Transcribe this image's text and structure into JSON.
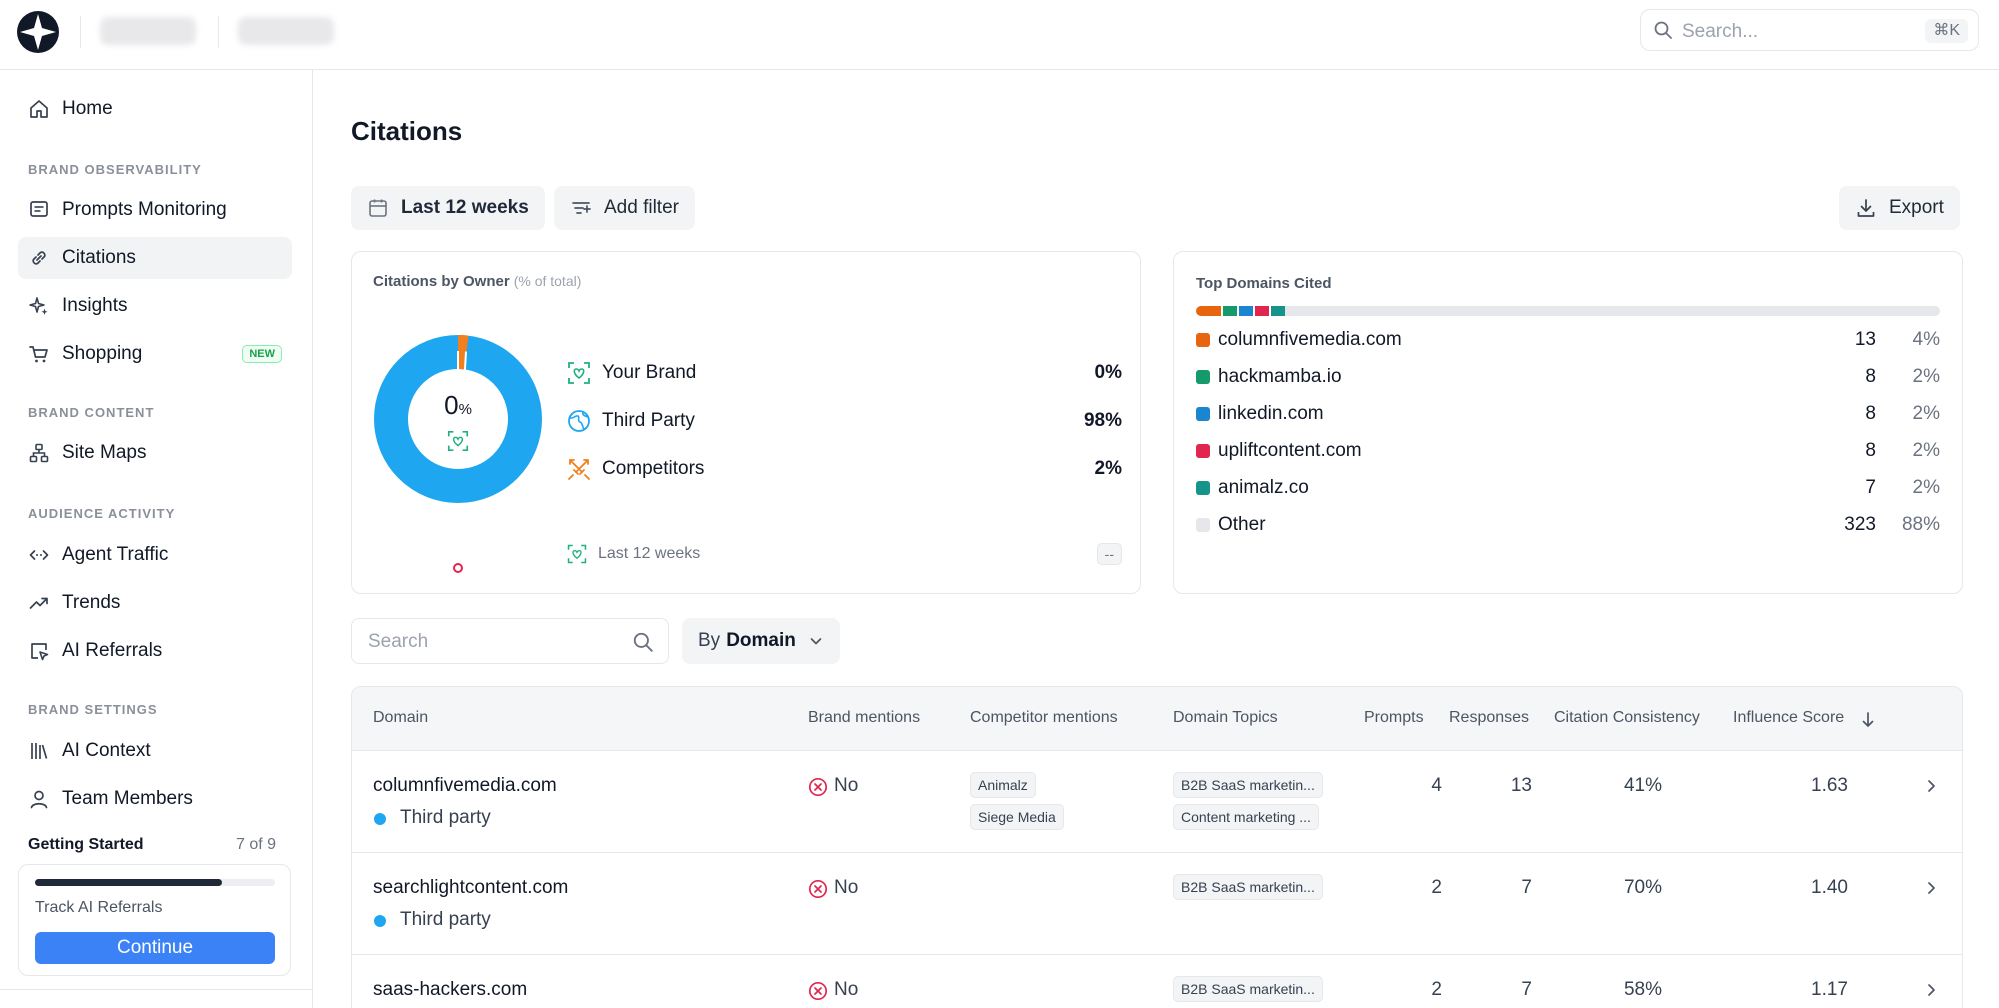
{
  "topbar": {
    "search_placeholder": "Search...",
    "search_shortcut": "⌘K"
  },
  "sidebar": {
    "home": "Home",
    "sections": {
      "brand_observability": "BRAND OBSERVABILITY",
      "brand_content": "BRAND CONTENT",
      "audience_activity": "AUDIENCE ACTIVITY",
      "brand_settings": "BRAND SETTINGS"
    },
    "items": {
      "prompts_monitoring": "Prompts Monitoring",
      "citations": "Citations",
      "insights": "Insights",
      "shopping": "Shopping",
      "shopping_badge": "NEW",
      "site_maps": "Site Maps",
      "agent_traffic": "Agent Traffic",
      "trends": "Trends",
      "ai_referrals": "AI Referrals",
      "ai_context": "AI Context",
      "team_members": "Team Members"
    },
    "getting_started": {
      "title": "Getting Started",
      "count": "7 of 9",
      "progress": 0.78,
      "task": "Track AI Referrals",
      "button": "Continue"
    }
  },
  "main": {
    "title": "Citations",
    "date_filter": "Last 12 weeks",
    "add_filter": "Add filter",
    "export": "Export"
  },
  "owner_card": {
    "title": "Citations by Owner",
    "subtitle": "(% of total)",
    "center_value": "0",
    "center_unit": "%",
    "rows": [
      {
        "name": "Your Brand",
        "pct": "0%"
      },
      {
        "name": "Third Party",
        "pct": "98%"
      },
      {
        "name": "Competitors",
        "pct": "2%"
      }
    ],
    "footer_label": "Last 12 weeks",
    "footer_value": "--",
    "colors": {
      "third_party": "#1ea7f0",
      "competitors": "#f07f1e",
      "your_brand": "#22b07d"
    }
  },
  "domains_card": {
    "title": "Top Domains Cited",
    "rows": [
      {
        "domain": "columnfivemedia.com",
        "count": "13",
        "pct": "4%",
        "color": "#e8650f"
      },
      {
        "domain": "hackmamba.io",
        "count": "8",
        "pct": "2%",
        "color": "#159a6c"
      },
      {
        "domain": "linkedin.com",
        "count": "8",
        "pct": "2%",
        "color": "#1a86cf"
      },
      {
        "domain": "upliftcontent.com",
        "count": "8",
        "pct": "2%",
        "color": "#e0264f"
      },
      {
        "domain": "animalz.co",
        "count": "7",
        "pct": "2%",
        "color": "#14948a"
      },
      {
        "domain": "Other",
        "count": "323",
        "pct": "88%",
        "color": "#e5e7eb"
      }
    ]
  },
  "table_toolbar": {
    "search_placeholder": "Search",
    "group_prefix": "By",
    "group_value": "Domain"
  },
  "table": {
    "headers": {
      "domain": "Domain",
      "brand_mentions": "Brand mentions",
      "competitor_mentions": "Competitor mentions",
      "domain_topics": "Domain Topics",
      "prompts": "Prompts",
      "responses": "Responses",
      "citation_consistency": "Citation Consistency",
      "influence_score": "Influence Score"
    },
    "rows": [
      {
        "domain": "columnfivemedia.com",
        "owner": "Third party",
        "brand": "No",
        "competitors": [
          "Animalz",
          "Siege Media"
        ],
        "topics": [
          "B2B SaaS marketin...",
          "Content marketing ..."
        ],
        "prompts": "4",
        "responses": "13",
        "consistency": "41%",
        "influence": "1.63"
      },
      {
        "domain": "searchlightcontent.com",
        "owner": "Third party",
        "brand": "No",
        "competitors": [],
        "topics": [
          "B2B SaaS marketin..."
        ],
        "prompts": "2",
        "responses": "7",
        "consistency": "70%",
        "influence": "1.40"
      },
      {
        "domain": "saas-hackers.com",
        "owner": "",
        "brand": "No",
        "competitors": [],
        "topics": [
          "B2B SaaS marketin..."
        ],
        "prompts": "2",
        "responses": "7",
        "consistency": "58%",
        "influence": "1.17"
      }
    ]
  }
}
